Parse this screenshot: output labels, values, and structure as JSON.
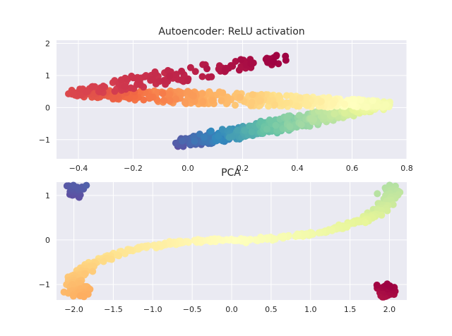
{
  "chart_data": [
    {
      "type": "scatter",
      "title": "Autoencoder: ReLU activation",
      "xlabel": "",
      "ylabel": "",
      "xlim": [
        -0.48,
        0.8
      ],
      "ylim": [
        -1.6,
        2.1
      ],
      "xticks": [
        -0.4,
        -0.2,
        0.0,
        0.2,
        0.4,
        0.6,
        0.8
      ],
      "xtick_labels": [
        "−0.4",
        "−0.2",
        "0.0",
        "0.2",
        "0.4",
        "0.6",
        "0.8"
      ],
      "yticks": [
        -1,
        0,
        1,
        2
      ],
      "ytick_labels": [
        "−1",
        "0",
        "1",
        "2"
      ],
      "grid": true,
      "colormap": "Spectral",
      "note": "points colored by position t along the S-curve (t=0 red, t=1 purple)",
      "curve_segments": [
        {
          "t": [
            0.0,
            0.12
          ],
          "x": [
            0.35,
            -0.42
          ],
          "y": [
            1.55,
            0.45
          ],
          "spread": 0.22
        },
        {
          "t": [
            0.12,
            0.55
          ],
          "x": [
            -0.42,
            0.72
          ],
          "y": [
            0.45,
            0.1
          ],
          "spread": 0.2
        },
        {
          "t": [
            0.55,
            1.0
          ],
          "x": [
            0.72,
            -0.04
          ],
          "y": [
            0.1,
            -1.15
          ],
          "spread": 0.2
        }
      ]
    },
    {
      "type": "scatter",
      "title": "PCA",
      "xlabel": "",
      "ylabel": "",
      "xlim": [
        -2.22,
        2.22
      ],
      "ylim": [
        -1.35,
        1.3
      ],
      "xticks": [
        -2.0,
        -1.5,
        -1.0,
        -0.5,
        0.0,
        0.5,
        1.0,
        1.5,
        2.0
      ],
      "xtick_labels": [
        "−2.0",
        "−1.5",
        "−1.0",
        "−0.5",
        "0.0",
        "0.5",
        "1.0",
        "1.5",
        "2.0"
      ],
      "yticks": [
        -1,
        0,
        1
      ],
      "ytick_labels": [
        "−1",
        "0",
        "1"
      ],
      "grid": true,
      "colormap": "Spectral",
      "note": "S-shaped curve from (-1, -1.1) to (1, 1.1); t=0 red, t=1 purple",
      "curve_range": [
        -1.5,
        1.5
      ]
    }
  ],
  "colors": {
    "plot_bg": "#eaeaf2",
    "grid": "#ffffff",
    "text": "#262626"
  }
}
